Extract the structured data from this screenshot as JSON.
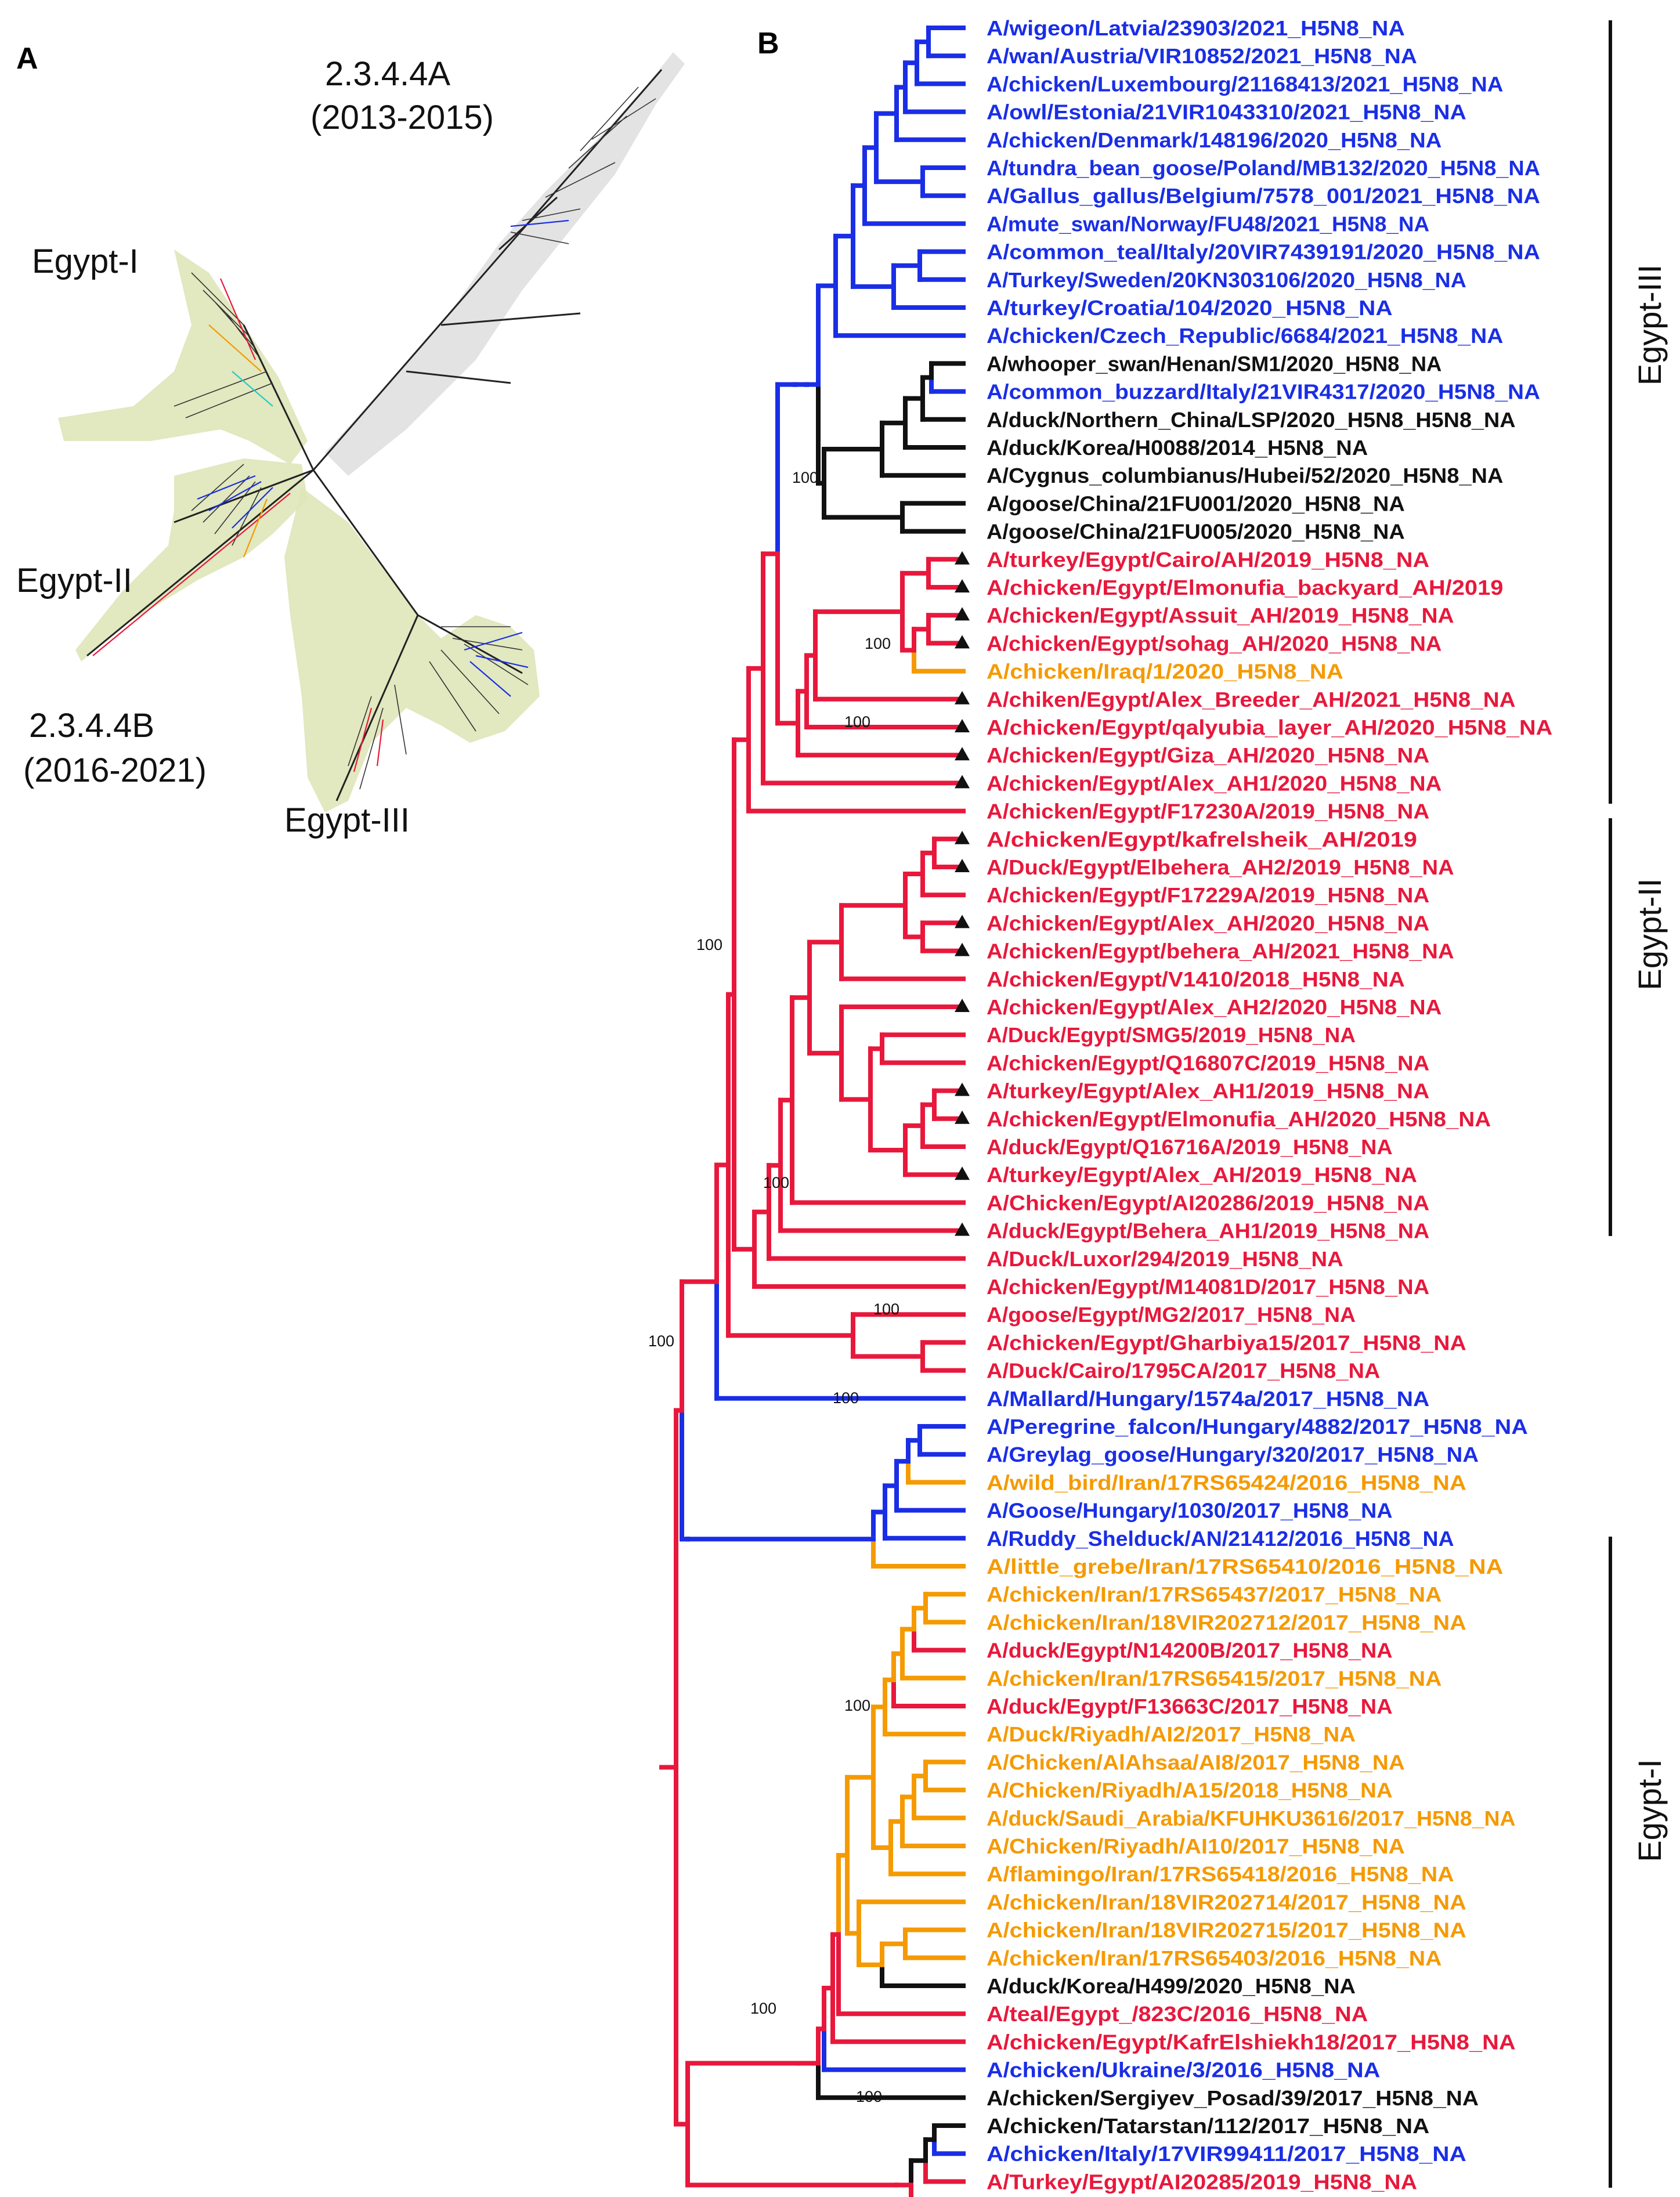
{
  "panel_a": {
    "letter": "A",
    "labels": [
      {
        "text": "2.3.4.4A"
      },
      {
        "text": "(2013-2015)"
      },
      {
        "text": "Egypt-I"
      },
      {
        "text": "Egypt-II"
      },
      {
        "text": "2.3.4.4B"
      },
      {
        "text": "(2016-2021)"
      },
      {
        "text": "Egypt-III"
      }
    ]
  },
  "panel_b": {
    "letter": "B",
    "colors": {
      "blue": "#1a2ee6",
      "black": "#111111",
      "red": "#e8183c",
      "orange": "#f59a00"
    },
    "bootstrap_value": "100",
    "clades": [
      "Egypt-III",
      "Egypt-II",
      "Egypt-I"
    ],
    "tips": [
      {
        "text": "A/wigeon/Latvia/23903/2021_H5N8_NA",
        "color": "blue"
      },
      {
        "text": "A/wan/Austria/VIR10852/2021_H5N8_NA",
        "color": "blue"
      },
      {
        "text": "A/chicken/Luxembourg/21168413/2021_H5N8_NA",
        "color": "blue"
      },
      {
        "text": "A/owl/Estonia/21VIR1043310/2021_H5N8_NA",
        "color": "blue"
      },
      {
        "text": "A/chicken/Denmark/148196/2020_H5N8_NA",
        "color": "blue"
      },
      {
        "text": "A/tundra_bean_goose/Poland/MB132/2020_H5N8_NA",
        "color": "blue"
      },
      {
        "text": "A/Gallus_gallus/Belgium/7578_001/2021_H5N8_NA",
        "color": "blue"
      },
      {
        "text": "A/mute_swan/Norway/FU48/2021_H5N8_NA",
        "color": "blue"
      },
      {
        "text": "A/common_teal/Italy/20VIR7439191/2020_H5N8_NA",
        "color": "blue"
      },
      {
        "text": "A/Turkey/Sweden/20KN303106/2020_H5N8_NA",
        "color": "blue"
      },
      {
        "text": "A/turkey/Croatia/104/2020_H5N8_NA",
        "color": "blue"
      },
      {
        "text": "A/chicken/Czech_Republic/6684/2021_H5N8_NA",
        "color": "blue"
      },
      {
        "text": "A/whooper_swan/Henan/SM1/2020_H5N8_NA",
        "color": "black"
      },
      {
        "text": "A/common_buzzard/Italy/21VIR4317/2020_H5N8_NA",
        "color": "blue"
      },
      {
        "text": "A/duck/Northern_China/LSP/2020_H5N8_H5N8_NA",
        "color": "black"
      },
      {
        "text": "A/duck/Korea/H0088/2014_H5N8_NA",
        "color": "black"
      },
      {
        "text": "A/Cygnus_columbianus/Hubei/52/2020_H5N8_NA",
        "color": "black"
      },
      {
        "text": "A/goose/China/21FU001/2020_H5N8_NA",
        "color": "black"
      },
      {
        "text": "A/goose/China/21FU005/2020_H5N8_NA",
        "color": "black"
      },
      {
        "text": "A/turkey/Egypt/Cairo/AH/2019_H5N8_NA",
        "color": "red",
        "tri": true
      },
      {
        "text": "A/chicken/Egypt/Elmonufia_backyard_AH/2019",
        "color": "red",
        "tri": true
      },
      {
        "text": "A/chicken/Egypt/Assuit_AH/2019_H5N8_NA",
        "color": "red",
        "tri": true
      },
      {
        "text": "A/chicken/Egypt/sohag_AH/2020_H5N8_NA",
        "color": "red",
        "tri": true
      },
      {
        "text": "A/chicken/Iraq/1/2020_H5N8_NA",
        "color": "orange"
      },
      {
        "text": "A/chiken/Egypt/Alex_Breeder_AH/2021_H5N8_NA",
        "color": "red",
        "tri": true
      },
      {
        "text": "A/chicken/Egypt/qalyubia_layer_AH/2020_H5N8_NA",
        "color": "red",
        "tri": true
      },
      {
        "text": "A/chicken/Egypt/Giza_AH/2020_H5N8_NA",
        "color": "red",
        "tri": true
      },
      {
        "text": "A/chicken/Egypt/Alex_AH1/2020_H5N8_NA",
        "color": "red",
        "tri": true
      },
      {
        "text": "A/chicken/Egypt/F17230A/2019_H5N8_NA",
        "color": "red"
      },
      {
        "text": "A/chicken/Egypt/kafrelsheik_AH/2019",
        "color": "red",
        "tri": true
      },
      {
        "text": "A/Duck/Egypt/Elbehera_AH2/2019_H5N8_NA",
        "color": "red",
        "tri": true
      },
      {
        "text": "A/chicken/Egypt/F17229A/2019_H5N8_NA",
        "color": "red"
      },
      {
        "text": "A/chicken/Egypt/Alex_AH/2020_H5N8_NA",
        "color": "red",
        "tri": true
      },
      {
        "text": "A/chicken/Egypt/behera_AH/2021_H5N8_NA",
        "color": "red",
        "tri": true
      },
      {
        "text": "A/chicken/Egypt/V1410/2018_H5N8_NA",
        "color": "red"
      },
      {
        "text": "A/chicken/Egypt/Alex_AH2/2020_H5N8_NA",
        "color": "red",
        "tri": true
      },
      {
        "text": "A/Duck/Egypt/SMG5/2019_H5N8_NA",
        "color": "red"
      },
      {
        "text": "A/chicken/Egypt/Q16807C/2019_H5N8_NA",
        "color": "red"
      },
      {
        "text": "A/turkey/Egypt/Alex_AH1/2019_H5N8_NA",
        "color": "red",
        "tri": true
      },
      {
        "text": "A/chicken/Egypt/Elmonufia_AH/2020_H5N8_NA",
        "color": "red",
        "tri": true
      },
      {
        "text": "A/duck/Egypt/Q16716A/2019_H5N8_NA",
        "color": "red"
      },
      {
        "text": "A/turkey/Egypt/Alex_AH/2019_H5N8_NA",
        "color": "red",
        "tri": true
      },
      {
        "text": "A/Chicken/Egypt/AI20286/2019_H5N8_NA",
        "color": "red"
      },
      {
        "text": "A/duck/Egypt/Behera_AH1/2019_H5N8_NA",
        "color": "red",
        "tri": true
      },
      {
        "text": "A/Duck/Luxor/294/2019_H5N8_NA",
        "color": "red"
      },
      {
        "text": "A/chicken/Egypt/M14081D/2017_H5N8_NA",
        "color": "red"
      },
      {
        "text": "A/goose/Egypt/MG2/2017_H5N8_NA",
        "color": "red"
      },
      {
        "text": "A/chicken/Egypt/Gharbiya15/2017_H5N8_NA",
        "color": "red"
      },
      {
        "text": "A/Duck/Cairo/1795CA/2017_H5N8_NA",
        "color": "red"
      },
      {
        "text": "A/Mallard/Hungary/1574a/2017_H5N8_NA",
        "color": "blue"
      },
      {
        "text": "A/Peregrine_falcon/Hungary/4882/2017_H5N8_NA",
        "color": "blue"
      },
      {
        "text": "A/Greylag_goose/Hungary/320/2017_H5N8_NA",
        "color": "blue"
      },
      {
        "text": "A/wild_bird/Iran/17RS65424/2016_H5N8_NA",
        "color": "orange"
      },
      {
        "text": "A/Goose/Hungary/1030/2017_H5N8_NA",
        "color": "blue"
      },
      {
        "text": "A/Ruddy_Shelduck/AN/21412/2016_H5N8_NA",
        "color": "blue"
      },
      {
        "text": "A/little_grebe/Iran/17RS65410/2016_H5N8_NA",
        "color": "orange"
      },
      {
        "text": "A/chicken/Iran/17RS65437/2017_H5N8_NA",
        "color": "orange"
      },
      {
        "text": "A/chicken/Iran/18VIR202712/2017_H5N8_NA",
        "color": "orange"
      },
      {
        "text": "A/duck/Egypt/N14200B/2017_H5N8_NA",
        "color": "red"
      },
      {
        "text": "A/chicken/Iran/17RS65415/2017_H5N8_NA",
        "color": "orange"
      },
      {
        "text": "A/duck/Egypt/F13663C/2017_H5N8_NA",
        "color": "red"
      },
      {
        "text": "A/Duck/Riyadh/AI2/2017_H5N8_NA",
        "color": "orange"
      },
      {
        "text": "A/Chicken/AlAhsaa/AI8/2017_H5N8_NA",
        "color": "orange"
      },
      {
        "text": "A/Chicken/Riyadh/A15/2018_H5N8_NA",
        "color": "orange"
      },
      {
        "text": "A/duck/Saudi_Arabia/KFUHKU3616/2017_H5N8_NA",
        "color": "orange"
      },
      {
        "text": "A/Chicken/Riyadh/AI10/2017_H5N8_NA",
        "color": "orange"
      },
      {
        "text": "A/flamingo/Iran/17RS65418/2016_H5N8_NA",
        "color": "orange"
      },
      {
        "text": "A/chicken/Iran/18VIR202714/2017_H5N8_NA",
        "color": "orange"
      },
      {
        "text": "A/chicken/Iran/18VIR202715/2017_H5N8_NA",
        "color": "orange"
      },
      {
        "text": "A/chicken/Iran/17RS65403/2016_H5N8_NA",
        "color": "orange"
      },
      {
        "text": "A/duck/Korea/H499/2020_H5N8_NA",
        "color": "black"
      },
      {
        "text": "A/teal/Egypt_/823C/2016_H5N8_NA",
        "color": "red"
      },
      {
        "text": "A/chicken/Egypt/KafrElshiekh18/2017_H5N8_NA",
        "color": "red"
      },
      {
        "text": "A/chicken/Ukraine/3/2016_H5N8_NA",
        "color": "blue"
      },
      {
        "text": "A/chicken/Sergiyev_Posad/39/2017_H5N8_NA",
        "color": "black"
      },
      {
        "text": "A/chicken/Tatarstan/112/2017_H5N8_NA",
        "color": "black"
      },
      {
        "text": "A/chicken/Italy/17VIR99411/2017_H5N8_NA",
        "color": "blue"
      },
      {
        "text": "A/Turkey/Egypt/AI20285/2019_H5N8_NA",
        "color": "red"
      }
    ]
  }
}
